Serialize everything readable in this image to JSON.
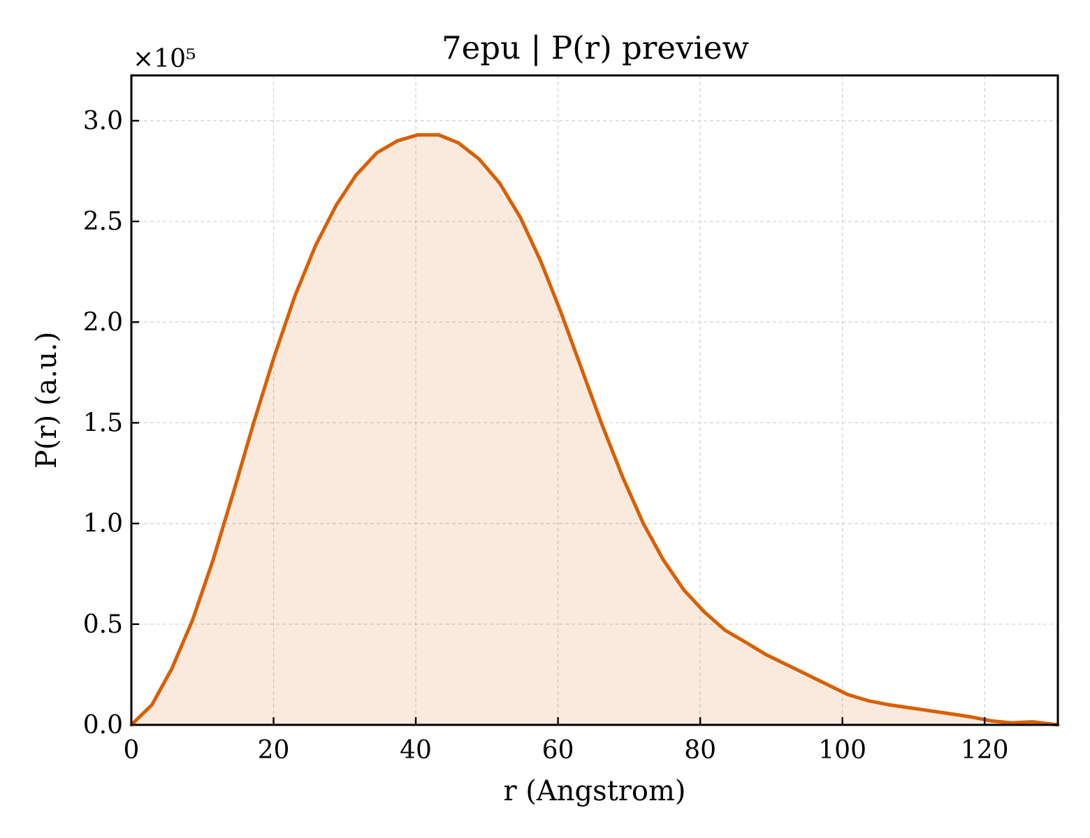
{
  "chart_data": {
    "type": "area",
    "title": "7epu | P(r) preview",
    "xlabel": "r (Angstrom)",
    "ylabel": "P(r) (a.u.)",
    "y_offset_text": "×10⁵",
    "y_scale": 100000,
    "xlim": [
      0,
      130.3
    ],
    "ylim": [
      0,
      3.225
    ],
    "xticks": [
      0,
      20,
      40,
      60,
      80,
      100,
      120
    ],
    "xtick_labels": [
      "0",
      "20",
      "40",
      "60",
      "80",
      "100",
      "120"
    ],
    "yticks": [
      0.0,
      0.5,
      1.0,
      1.5,
      2.0,
      2.5,
      3.0
    ],
    "ytick_labels": [
      "0.0",
      "0.5",
      "1.0",
      "1.5",
      "2.0",
      "2.5",
      "3.0"
    ],
    "grid": true,
    "line_color": "#d95f02",
    "fill_color": "#d95f02",
    "fill_opacity": 0.13,
    "series": [
      {
        "x": [
          0,
          2.9,
          5.7,
          8.6,
          11.5,
          14.4,
          17.2,
          20.1,
          23.0,
          25.9,
          28.8,
          31.6,
          34.5,
          37.4,
          40.3,
          43.2,
          46.0,
          48.9,
          51.8,
          54.7,
          57.6,
          60.4,
          63.3,
          66.2,
          69.1,
          72.0,
          74.8,
          77.7,
          80.6,
          83.5,
          86.4,
          89.2,
          92.1,
          95.0,
          97.9,
          100.8,
          103.6,
          106.5,
          109.4,
          112.3,
          115.2,
          118.0,
          120.9,
          123.8,
          126.7,
          130.3
        ],
        "y": [
          0.0,
          0.1,
          0.28,
          0.52,
          0.82,
          1.16,
          1.5,
          1.83,
          2.13,
          2.38,
          2.58,
          2.73,
          2.84,
          2.9,
          2.93,
          2.93,
          2.89,
          2.81,
          2.69,
          2.52,
          2.3,
          2.05,
          1.77,
          1.49,
          1.23,
          1.0,
          0.82,
          0.67,
          0.56,
          0.47,
          0.41,
          0.35,
          0.3,
          0.25,
          0.2,
          0.15,
          0.12,
          0.1,
          0.085,
          0.07,
          0.055,
          0.04,
          0.02,
          0.01,
          0.015,
          0.0
        ]
      }
    ]
  }
}
